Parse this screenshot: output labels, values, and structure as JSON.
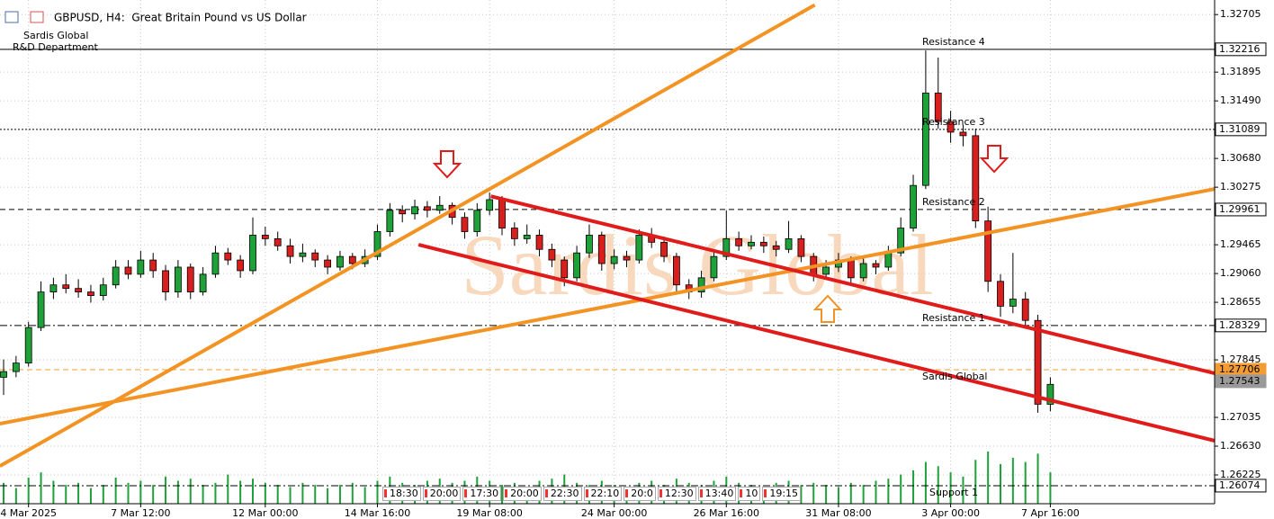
{
  "chart_data": {
    "type": "candlestick",
    "title": "GBPUSD, H4:  Great Britain Pound vs US Dollar",
    "header_lines": [
      "Sardis Global",
      "R&D Department"
    ],
    "watermark": "Sardis Global",
    "up_color": "#1fa13a",
    "down_color": "#d91e1e",
    "volume_color": "#1fa13a",
    "grid": true,
    "ylim": [
      1.2582,
      1.3291
    ],
    "yticks": [
      {
        "value": 1.32705,
        "label": "1.32705"
      },
      {
        "value": 1.31895,
        "label": "1.31895"
      },
      {
        "value": 1.3149,
        "label": "1.31490"
      },
      {
        "value": 1.3068,
        "label": "1.30680"
      },
      {
        "value": 1.30275,
        "label": "1.30275"
      },
      {
        "value": 1.29465,
        "label": "1.29465"
      },
      {
        "value": 1.2906,
        "label": "1.29060"
      },
      {
        "value": 1.28655,
        "label": "1.28655"
      },
      {
        "value": 1.27845,
        "label": "1.27845"
      },
      {
        "value": 1.27035,
        "label": "1.27035"
      },
      {
        "value": 1.2663,
        "label": "1.26630"
      },
      {
        "value": 1.26225,
        "label": "1.26225"
      }
    ],
    "categories": [
      null,
      null,
      "4 Mar 2025",
      null,
      null,
      null,
      null,
      null,
      null,
      null,
      null,
      "7 Mar 12:00",
      null,
      null,
      null,
      null,
      null,
      null,
      null,
      null,
      null,
      "12 Mar 00:00",
      null,
      null,
      null,
      null,
      null,
      null,
      null,
      null,
      "14 Mar 16:00",
      null,
      null,
      null,
      null,
      null,
      null,
      null,
      null,
      "19 Mar 08:00",
      null,
      null,
      null,
      null,
      null,
      null,
      null,
      null,
      null,
      "24 Mar 00:00",
      null,
      null,
      null,
      null,
      null,
      null,
      null,
      null,
      "26 Mar 16:00",
      null,
      null,
      null,
      null,
      null,
      null,
      null,
      null,
      "31 Mar 08:00",
      null,
      null,
      null,
      null,
      null,
      null,
      null,
      null,
      "3 Apr 00:00",
      null,
      null,
      null,
      null,
      null,
      null,
      null,
      "7 Apr 16:00"
    ],
    "ohlc": [
      [
        1.276,
        1.2785,
        1.2735,
        1.2768
      ],
      [
        1.2768,
        1.279,
        1.276,
        1.278
      ],
      [
        1.278,
        1.2838,
        1.2775,
        1.283
      ],
      [
        1.283,
        1.2895,
        1.2825,
        1.288
      ],
      [
        1.288,
        1.29,
        1.287,
        1.289
      ],
      [
        1.289,
        1.2905,
        1.2878,
        1.2885
      ],
      [
        1.2885,
        1.2898,
        1.2872,
        1.288
      ],
      [
        1.288,
        1.289,
        1.2865,
        1.2875
      ],
      [
        1.2875,
        1.29,
        1.2868,
        1.289
      ],
      [
        1.289,
        1.2925,
        1.2885,
        1.2915
      ],
      [
        1.2915,
        1.2925,
        1.2898,
        1.2905
      ],
      [
        1.2905,
        1.2938,
        1.29,
        1.2925
      ],
      [
        1.2925,
        1.2935,
        1.29,
        1.291
      ],
      [
        1.291,
        1.2918,
        1.2868,
        1.288
      ],
      [
        1.288,
        1.2925,
        1.2872,
        1.2915
      ],
      [
        1.2915,
        1.292,
        1.287,
        1.288
      ],
      [
        1.288,
        1.2915,
        1.2875,
        1.2905
      ],
      [
        1.2905,
        1.2945,
        1.29,
        1.2935
      ],
      [
        1.2935,
        1.2942,
        1.2918,
        1.2925
      ],
      [
        1.2925,
        1.2932,
        1.29,
        1.291
      ],
      [
        1.291,
        1.2985,
        1.2905,
        1.296
      ],
      [
        1.296,
        1.2972,
        1.2945,
        1.2955
      ],
      [
        1.2955,
        1.2965,
        1.2938,
        1.2945
      ],
      [
        1.2945,
        1.2955,
        1.292,
        1.293
      ],
      [
        1.293,
        1.2948,
        1.2922,
        1.2935
      ],
      [
        1.2935,
        1.294,
        1.2915,
        1.2925
      ],
      [
        1.2925,
        1.2932,
        1.2905,
        1.2915
      ],
      [
        1.2915,
        1.2938,
        1.291,
        1.293
      ],
      [
        1.293,
        1.2935,
        1.2912,
        1.292
      ],
      [
        1.292,
        1.294,
        1.2915,
        1.293
      ],
      [
        1.293,
        1.2975,
        1.2925,
        1.2965
      ],
      [
        1.2965,
        1.3005,
        1.2958,
        1.2995
      ],
      [
        1.2995,
        1.3002,
        1.2978,
        1.299
      ],
      [
        1.299,
        1.301,
        1.2982,
        1.3
      ],
      [
        1.3,
        1.3008,
        1.2985,
        1.2995
      ],
      [
        1.2995,
        1.3015,
        1.299,
        1.3002
      ],
      [
        1.3002,
        1.3006,
        1.2975,
        1.2985
      ],
      [
        1.2985,
        1.2992,
        1.2955,
        1.2965
      ],
      [
        1.2965,
        1.3005,
        1.2958,
        1.2995
      ],
      [
        1.2995,
        1.302,
        1.2988,
        1.301
      ],
      [
        1.301,
        1.3015,
        1.296,
        1.297
      ],
      [
        1.297,
        1.2978,
        1.2945,
        1.2955
      ],
      [
        1.2955,
        1.2975,
        1.2948,
        1.296
      ],
      [
        1.296,
        1.2968,
        1.293,
        1.294
      ],
      [
        1.294,
        1.2948,
        1.2915,
        1.2925
      ],
      [
        1.2925,
        1.293,
        1.2888,
        1.29
      ],
      [
        1.29,
        1.2945,
        1.2895,
        1.2935
      ],
      [
        1.2935,
        1.2975,
        1.2928,
        1.296
      ],
      [
        1.296,
        1.2965,
        1.291,
        1.292
      ],
      [
        1.292,
        1.294,
        1.2912,
        1.293
      ],
      [
        1.293,
        1.2938,
        1.2915,
        1.2925
      ],
      [
        1.2925,
        1.2968,
        1.292,
        1.296
      ],
      [
        1.296,
        1.297,
        1.2942,
        1.295
      ],
      [
        1.295,
        1.2958,
        1.2922,
        1.293
      ],
      [
        1.293,
        1.2935,
        1.288,
        1.289
      ],
      [
        1.289,
        1.2898,
        1.287,
        1.288
      ],
      [
        1.288,
        1.291,
        1.2872,
        1.29
      ],
      [
        1.29,
        1.294,
        1.2895,
        1.293
      ],
      [
        1.293,
        1.2995,
        1.2925,
        1.2955
      ],
      [
        1.2955,
        1.2965,
        1.2938,
        1.2945
      ],
      [
        1.2945,
        1.296,
        1.294,
        1.295
      ],
      [
        1.295,
        1.2958,
        1.2935,
        1.2945
      ],
      [
        1.2945,
        1.2952,
        1.293,
        1.294
      ],
      [
        1.294,
        1.298,
        1.2935,
        1.2955
      ],
      [
        1.2955,
        1.296,
        1.2922,
        1.293
      ],
      [
        1.293,
        1.2935,
        1.2895,
        1.2905
      ],
      [
        1.2905,
        1.2925,
        1.2898,
        1.2915
      ],
      [
        1.2915,
        1.2935,
        1.2908,
        1.2925
      ],
      [
        1.2925,
        1.293,
        1.289,
        1.29
      ],
      [
        1.29,
        1.2928,
        1.2895,
        1.292
      ],
      [
        1.292,
        1.2925,
        1.2905,
        1.2915
      ],
      [
        1.2915,
        1.2945,
        1.291,
        1.2935
      ],
      [
        1.2935,
        1.2985,
        1.293,
        1.297
      ],
      [
        1.297,
        1.3045,
        1.2965,
        1.303
      ],
      [
        1.303,
        1.322,
        1.3025,
        1.316
      ],
      [
        1.316,
        1.321,
        1.311,
        1.312
      ],
      [
        1.312,
        1.3135,
        1.309,
        1.3105
      ],
      [
        1.3105,
        1.3115,
        1.3085,
        1.31
      ],
      [
        1.31,
        1.311,
        1.297,
        1.298
      ],
      [
        1.298,
        1.3,
        1.288,
        1.2895
      ],
      [
        1.2895,
        1.2905,
        1.2845,
        1.286
      ],
      [
        1.286,
        1.2935,
        1.285,
        1.287
      ],
      [
        1.287,
        1.288,
        1.283,
        1.284
      ],
      [
        1.284,
        1.2848,
        1.271,
        1.2722
      ],
      [
        1.2722,
        1.276,
        1.2712,
        1.275
      ]
    ],
    "volumes": [
      20,
      15,
      25,
      30,
      22,
      18,
      20,
      15,
      18,
      25,
      20,
      22,
      18,
      26,
      22,
      24,
      18,
      20,
      28,
      22,
      24,
      20,
      18,
      16,
      20,
      18,
      15,
      18,
      20,
      16,
      22,
      26,
      20,
      18,
      22,
      24,
      20,
      22,
      26,
      22,
      18,
      20,
      16,
      22,
      24,
      28,
      20,
      18,
      22,
      18,
      16,
      20,
      22,
      18,
      24,
      20,
      18,
      22,
      26,
      20,
      18,
      16,
      20,
      22,
      18,
      20,
      18,
      16,
      20,
      18,
      22,
      24,
      28,
      32,
      40,
      36,
      30,
      26,
      42,
      50,
      38,
      44,
      40,
      48,
      30
    ],
    "levels": [
      {
        "value": 1.32216,
        "label": "Resistance 4",
        "color": "#000000",
        "style": "solid"
      },
      {
        "value": 1.31089,
        "label": "Resistance 3",
        "color": "#000000",
        "style": "dotted"
      },
      {
        "value": 1.29961,
        "label": "Resistance 2",
        "color": "#000000",
        "style": "dashed"
      },
      {
        "value": 1.28329,
        "label": "Resistance 1",
        "color": "#000000",
        "style": "dashdot"
      },
      {
        "value": 1.27706,
        "label": "Sardis Global",
        "color": "#f39c33",
        "style": "dashed"
      },
      {
        "value": 1.27543,
        "color": "#9a9a9a",
        "style": "none"
      },
      {
        "value": 1.26074,
        "label": "Support 1",
        "color": "#000000",
        "style": "dashdot"
      }
    ],
    "trendlines": [
      {
        "color": "#f39323",
        "x": [
          -0.3,
          65.1
        ],
        "y": [
          1.2635,
          1.3284
        ]
      },
      {
        "color": "#f39323",
        "x": [
          -0.3,
          97.2
        ],
        "y": [
          1.26946,
          1.3025
        ]
      },
      {
        "color": "#e01b1b",
        "x": [
          39.1,
          97.2
        ],
        "y": [
          1.30148,
          1.27655
        ]
      },
      {
        "color": "#e01b1b",
        "x": [
          33.3,
          97.2
        ],
        "y": [
          1.29465,
          1.26706
        ]
      }
    ],
    "time_markers": [
      "18:30",
      "20:00",
      "17:30",
      "20:00",
      "22:30",
      "22:10",
      "20:0",
      "12:30",
      "13:40",
      "10",
      "19:15"
    ]
  }
}
